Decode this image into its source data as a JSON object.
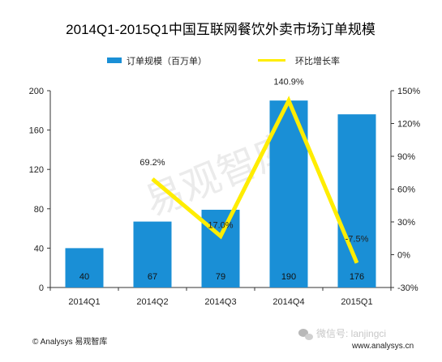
{
  "chart_data": {
    "type": "bar",
    "title": "2014Q1-2015Q1中国互联网餐饮外卖市场订单规模",
    "categories": [
      "2014Q1",
      "2014Q2",
      "2014Q3",
      "2014Q4",
      "2015Q1"
    ],
    "series": [
      {
        "name": "订单规模（百万单）",
        "type": "bar",
        "axis": "left",
        "values": [
          40,
          67,
          79,
          190,
          176
        ],
        "labels": [
          "40",
          "67",
          "79",
          "190",
          "176"
        ],
        "color": "#1a8fd6"
      },
      {
        "name": "环比增长率",
        "type": "line",
        "axis": "right",
        "values": [
          null,
          69.2,
          17.0,
          140.9,
          -7.5
        ],
        "labels": [
          "",
          "69.2%",
          "17.0%",
          "140.9%",
          "-7.5%"
        ],
        "color": "#ffed00"
      }
    ],
    "y_left": {
      "ylim": [
        0,
        200
      ],
      "ticks": [
        "0",
        "40",
        "80",
        "120",
        "160",
        "200"
      ]
    },
    "y_right": {
      "ylim": [
        -30,
        150
      ],
      "ticks": [
        "-30%",
        "0%",
        "30%",
        "60%",
        "90%",
        "120%",
        "150%"
      ]
    },
    "legend_position": "top"
  },
  "watermark": "易观智库",
  "footer": {
    "copyright": "© Analysys 易观智库",
    "wechat": "微信号: lanjingci",
    "website": "www.analysys.cn"
  }
}
